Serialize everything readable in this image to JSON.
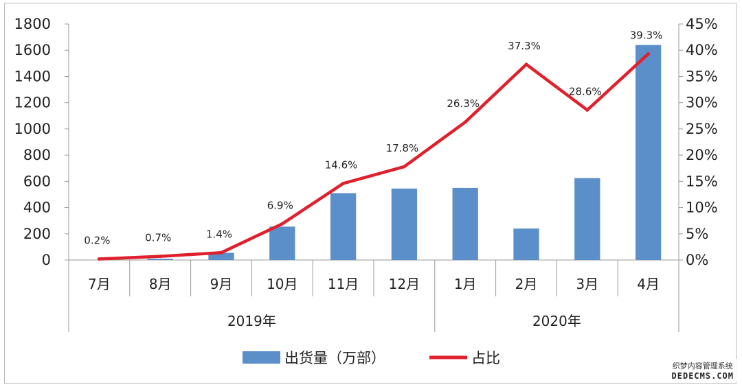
{
  "chart_data": {
    "type": "bar+line",
    "categories": [
      "7月",
      "8月",
      "9月",
      "10月",
      "11月",
      "12月",
      "1月",
      "2月",
      "3月",
      "4月"
    ],
    "groups": [
      {
        "label": "2019年",
        "span": [
          0,
          5
        ]
      },
      {
        "label": "2020年",
        "span": [
          6,
          9
        ]
      }
    ],
    "series": [
      {
        "name": "出货量（万部）",
        "type": "bar",
        "axis": "left",
        "color": "#5b8fc9",
        "values": [
          0,
          10,
          55,
          255,
          510,
          545,
          550,
          240,
          625,
          1640
        ]
      },
      {
        "name": "占比",
        "type": "line",
        "axis": "right",
        "color": "#e0202c",
        "values": [
          0.2,
          0.7,
          1.4,
          6.9,
          14.6,
          17.8,
          26.3,
          37.3,
          28.6,
          39.3
        ],
        "labels": [
          "0.2%",
          "0.7%",
          "1.4%",
          "6.9%",
          "14.6%",
          "17.8%",
          "26.3%",
          "37.3%",
          "28.6%",
          "39.3%"
        ]
      }
    ],
    "ylim_left": [
      0,
      1800
    ],
    "yticks_left": [
      "0",
      "200",
      "400",
      "600",
      "800",
      "1000",
      "1200",
      "1400",
      "1600",
      "1800"
    ],
    "ylim_right": [
      0,
      45
    ],
    "yticks_right": [
      "0%",
      "5%",
      "10%",
      "15%",
      "20%",
      "25%",
      "30%",
      "35%",
      "40%",
      "45%"
    ],
    "legend_position": "bottom",
    "grid": false
  },
  "watermark": {
    "line1": "织梦内容管理系统",
    "line2": "DEDECMS.COM"
  }
}
